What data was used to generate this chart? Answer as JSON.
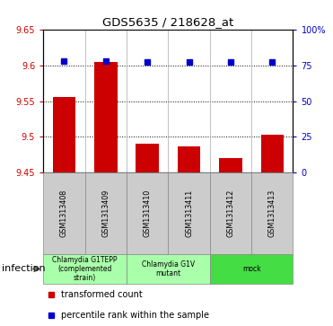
{
  "title": "GDS5635 / 218628_at",
  "samples": [
    "GSM1313408",
    "GSM1313409",
    "GSM1313410",
    "GSM1313411",
    "GSM1313412",
    "GSM1313413"
  ],
  "bar_values": [
    9.556,
    9.605,
    9.49,
    9.487,
    9.471,
    9.503
  ],
  "percentile_values": [
    78,
    78,
    77,
    77,
    77,
    77
  ],
  "bar_color": "#cc0000",
  "dot_color": "#0000cc",
  "ylim_left": [
    9.45,
    9.65
  ],
  "ylim_right": [
    0,
    100
  ],
  "yticks_left": [
    9.45,
    9.5,
    9.55,
    9.6,
    9.65
  ],
  "yticks_right": [
    0,
    25,
    50,
    75,
    100
  ],
  "ytick_labels_left": [
    "9.45",
    "9.5",
    "9.55",
    "9.6",
    "9.65"
  ],
  "ytick_labels_right": [
    "0",
    "25",
    "50",
    "75",
    "100%"
  ],
  "groups": [
    {
      "label": "Chlamydia G1TEPP\n(complemented\nstrain)",
      "indices": [
        0,
        1
      ],
      "color": "#aaffaa"
    },
    {
      "label": "Chlamydia G1V\nmutant",
      "indices": [
        2,
        3
      ],
      "color": "#aaffaa"
    },
    {
      "label": "mock",
      "indices": [
        4,
        5
      ],
      "color": "#44dd44"
    }
  ],
  "factor_label": "infection",
  "legend_items": [
    {
      "color": "#cc0000",
      "label": "transformed count"
    },
    {
      "color": "#0000cc",
      "label": "percentile rank within the sample"
    }
  ],
  "plot_bg": "#ffffff",
  "bar_width": 0.55,
  "sample_box_color": "#cccccc",
  "sample_box_edge": "#888888"
}
